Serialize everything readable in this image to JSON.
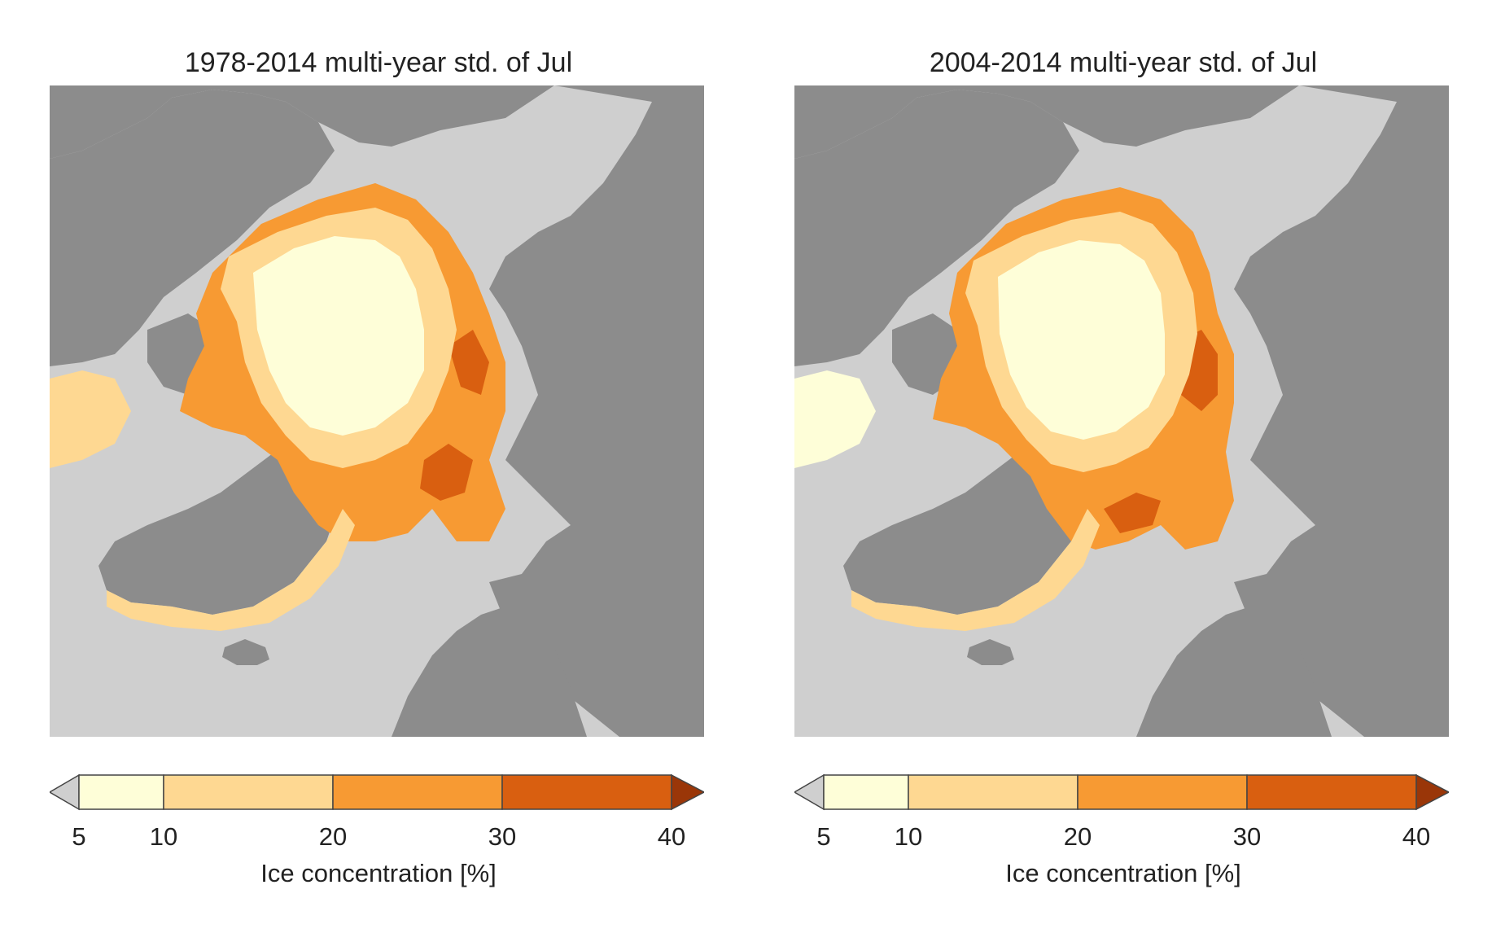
{
  "colors": {
    "ocean": "#cfcfcf",
    "land": "#8c8c8c",
    "border": "#c2c2c2",
    "under": "#cfcfcf",
    "c5_10": "#fefed8",
    "c10_20": "#fed892",
    "c20_30": "#f79a33",
    "c30_40": "#d95f10",
    "over": "#9a3608"
  },
  "colorbar": {
    "label": "Ice concentration [%]",
    "ticks": [
      "5",
      "10",
      "20",
      "30",
      "40"
    ]
  },
  "panels": [
    {
      "id": "left",
      "title": "1978-2014 multi-year std. of Jul"
    },
    {
      "id": "right",
      "title": "2004-2014 multi-year std. of Jul"
    }
  ]
}
